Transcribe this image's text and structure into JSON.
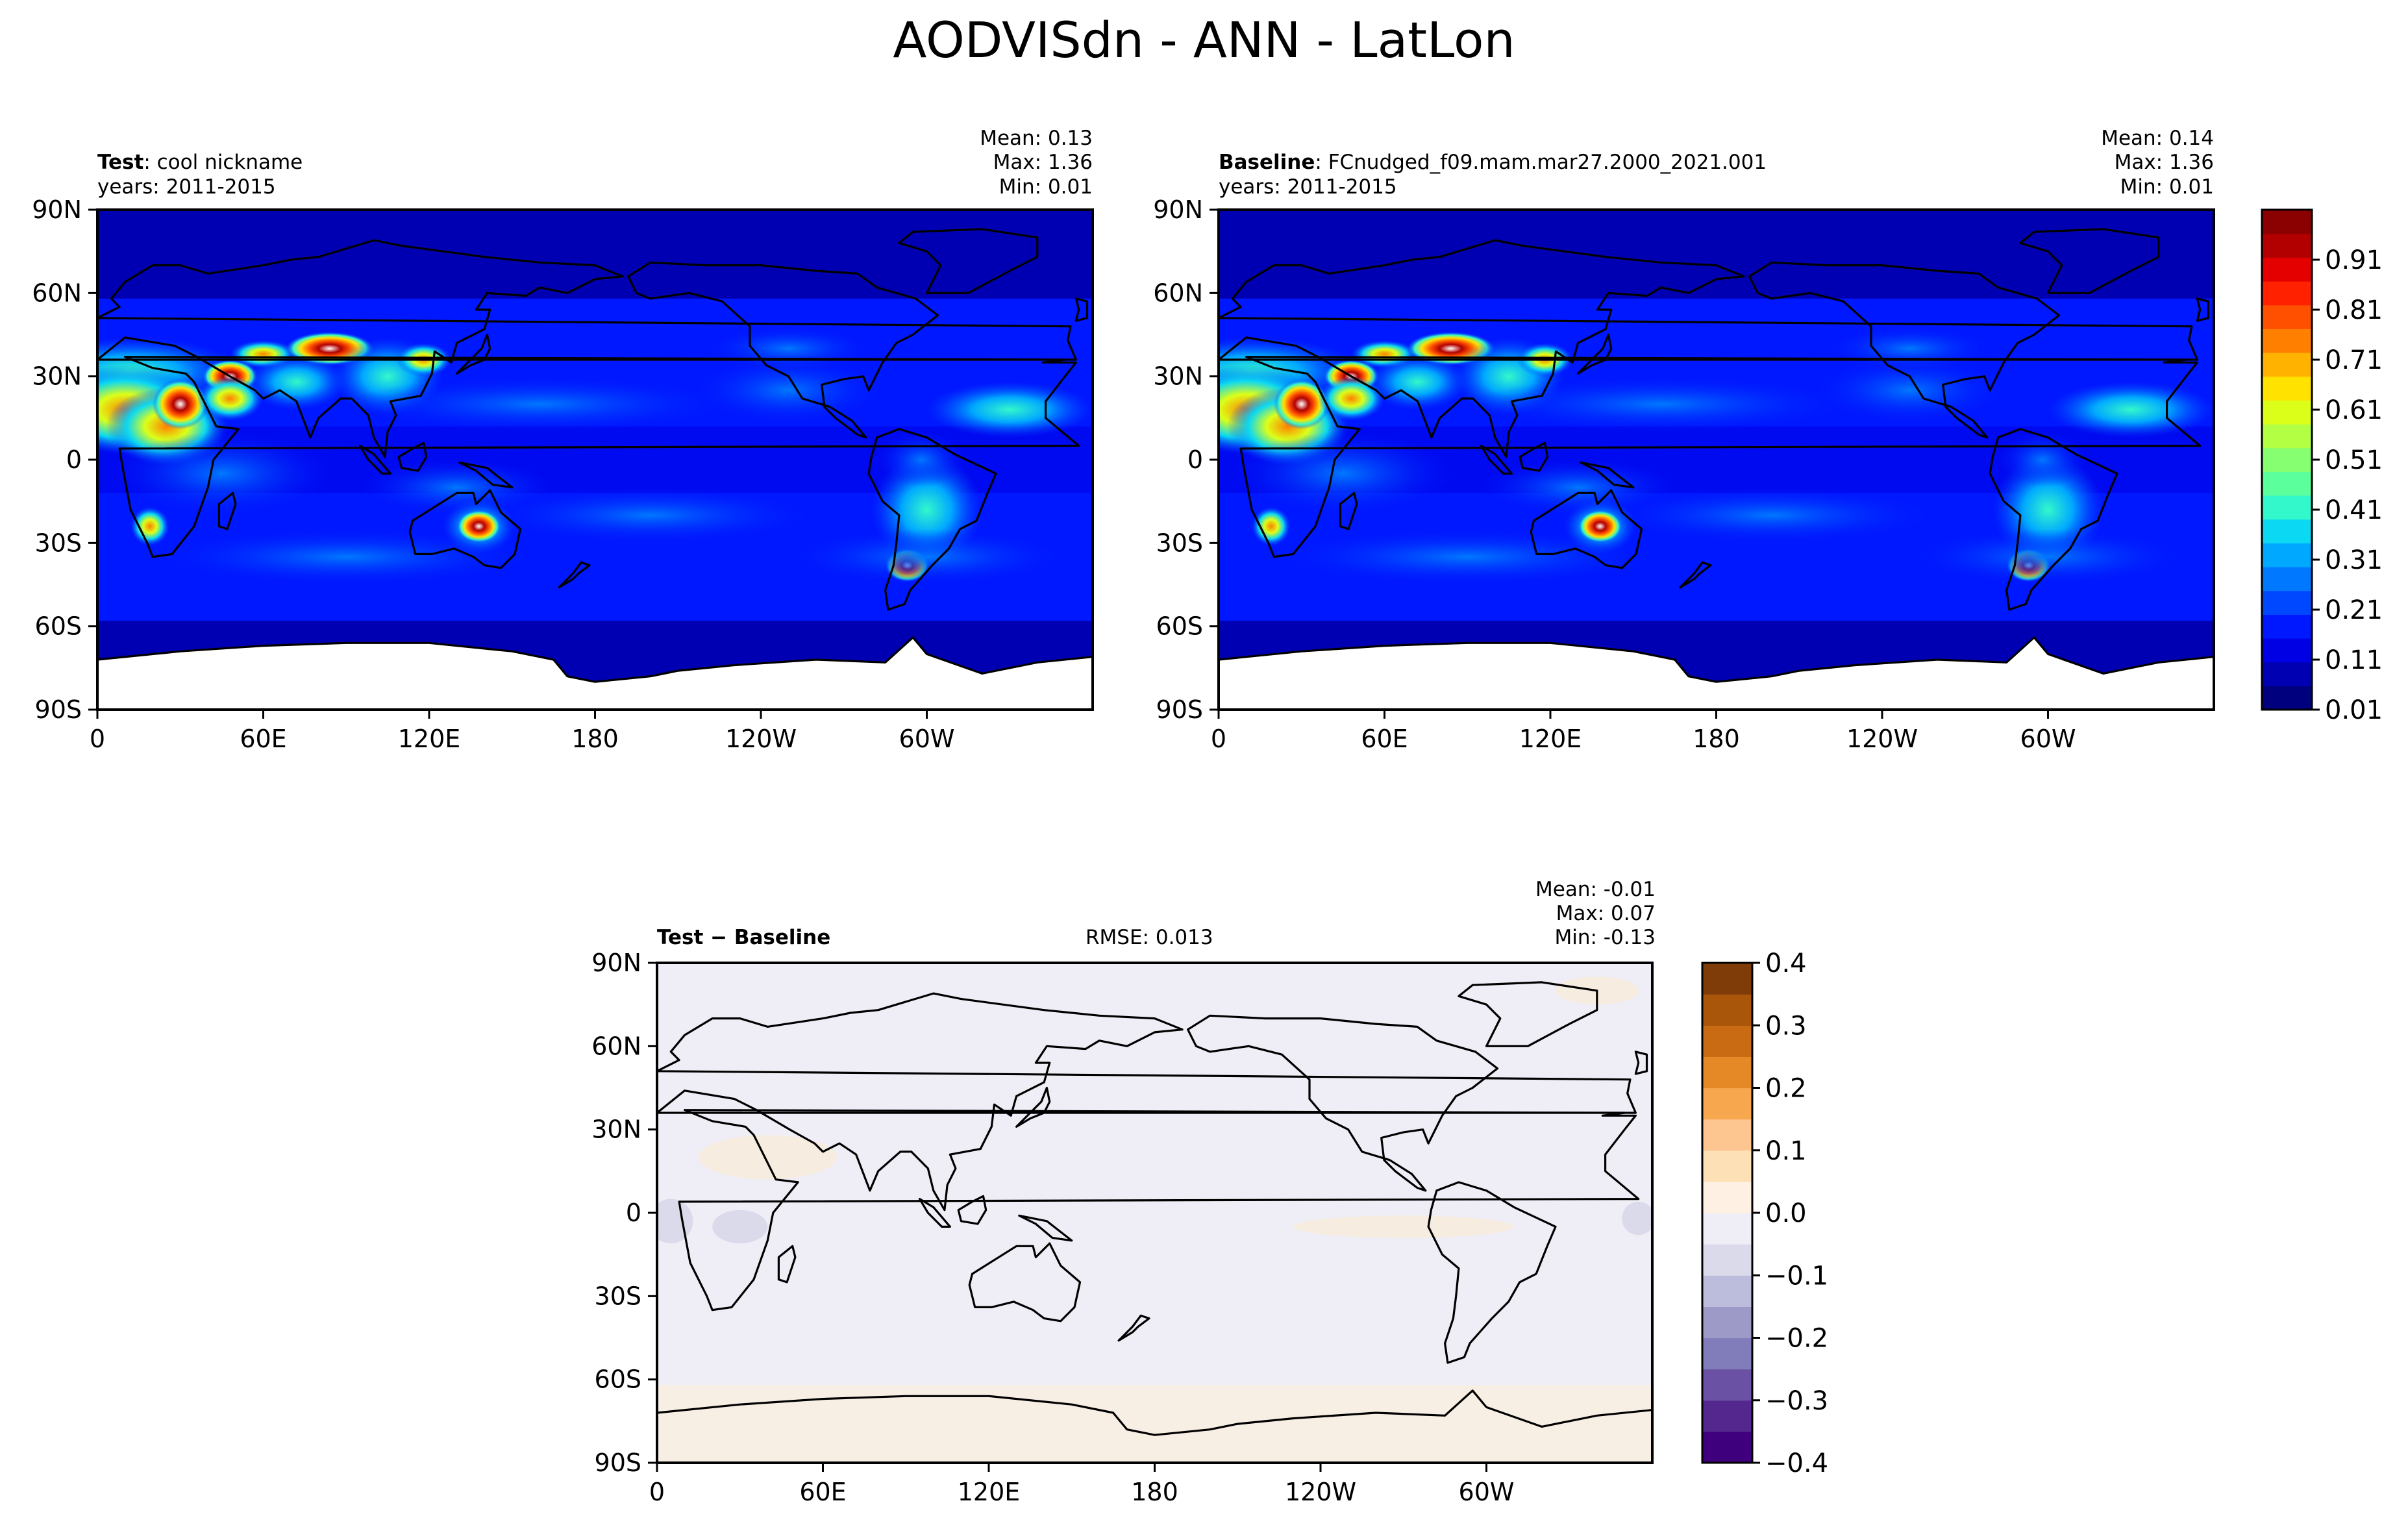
{
  "figure_title": "AODVISdn - ANN - LatLon",
  "panels": [
    {
      "id": "test",
      "label_bold": "Test",
      "label_sep": ":",
      "label_rest": "cool nickname",
      "years": "years: 2011-2015",
      "stats": [
        "Mean:  0.13",
        "Max:  1.36",
        "Min:  0.01"
      ]
    },
    {
      "id": "baseline",
      "label_bold": "Baseline",
      "label_sep": ":",
      "label_rest": "FCnudged_f09.mam.mar27.2000_2021.001",
      "years": "years: 2011-2015",
      "stats": [
        "Mean:  0.14",
        "Max:  1.36",
        "Min:  0.01"
      ]
    },
    {
      "id": "diff",
      "label_bold": "Test − Baseline",
      "rmse": "RMSE: 0.013",
      "stats": [
        "Mean: -0.01",
        "Max:  0.07",
        "Min: -0.13"
      ]
    }
  ],
  "chart_data": [
    {
      "type": "heatmap",
      "title": "Test : cool nickname",
      "projection": "PlateCarree, central longitude 180",
      "lon_ticks": [
        "0",
        "60E",
        "120E",
        "180",
        "120W",
        "60W"
      ],
      "lat_ticks": [
        "90N",
        "60N",
        "30N",
        "0",
        "30S",
        "60S",
        "90S"
      ],
      "stats": {
        "mean": 0.13,
        "max": 1.36,
        "min": 0.01
      },
      "years": "2011-2015"
    },
    {
      "type": "heatmap",
      "title": "Baseline : FCnudged_f09.mam.mar27.2000_2021.001",
      "projection": "PlateCarree, central longitude 180",
      "lon_ticks": [
        "0",
        "60E",
        "120E",
        "180",
        "120W",
        "60W"
      ],
      "lat_ticks": [
        "90N",
        "60N",
        "30N",
        "0",
        "30S",
        "60S",
        "90S"
      ],
      "stats": {
        "mean": 0.14,
        "max": 1.36,
        "min": 0.01
      },
      "years": "2011-2015"
    },
    {
      "type": "heatmap",
      "title": "Test − Baseline",
      "lon_ticks": [
        "0",
        "60E",
        "120E",
        "180",
        "120W",
        "60W"
      ],
      "lat_ticks": [
        "90N",
        "60N",
        "30N",
        "0",
        "30S",
        "60S",
        "90S"
      ],
      "stats": {
        "mean": -0.01,
        "max": 0.07,
        "min": -0.13
      },
      "rmse": 0.013
    }
  ],
  "colorbar_main": {
    "labels": [
      "0.91",
      "0.81",
      "0.71",
      "0.61",
      "0.51",
      "0.41",
      "0.31",
      "0.21",
      "0.11",
      "0.01"
    ],
    "colors": [
      "#00007f",
      "#0000b2",
      "#0000e5",
      "#0018ff",
      "#0048ff",
      "#0078ff",
      "#00a8ff",
      "#0bd8f2",
      "#33f8cb",
      "#5bff9c",
      "#86ff71",
      "#b2ff44",
      "#dcff19",
      "#ffe200",
      "#ffb300",
      "#ff8000",
      "#ff5000",
      "#ff2100",
      "#e50000",
      "#b20000",
      "#8b0000"
    ]
  },
  "colorbar_diff": {
    "labels": [
      "0.4",
      "0.3",
      "0.2",
      "0.1",
      "0.0",
      "−0.1",
      "−0.2",
      "−0.3",
      "−0.4"
    ],
    "colors": [
      "#3f007d",
      "#54278f",
      "#6a51a3",
      "#807dba",
      "#9e9ac8",
      "#bcbddc",
      "#dadaeb",
      "#efedf5",
      "#fef1e4",
      "#fee0b6",
      "#fdc58f",
      "#f7a84f",
      "#e58826",
      "#c86b12",
      "#a9550a",
      "#7f3b08"
    ]
  }
}
